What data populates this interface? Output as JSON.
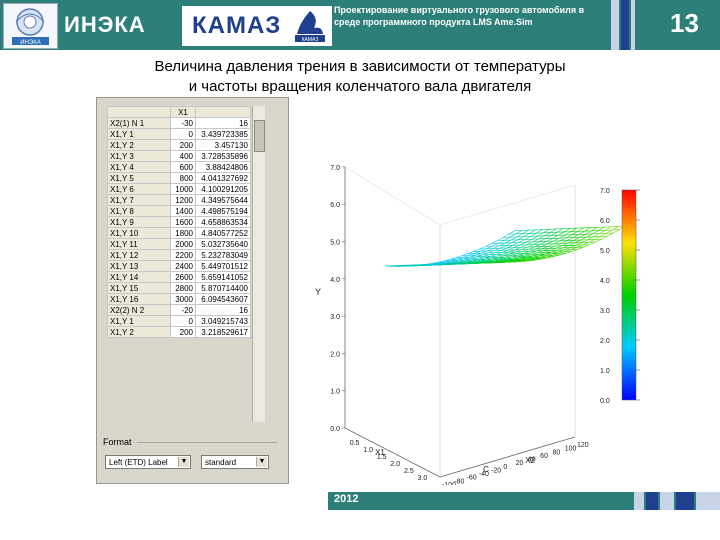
{
  "header": {
    "org_name": "ИНЭКА",
    "brand_name": "КАМАЗ",
    "project_text": "Проектирование виртуального грузового автомобиля в среде программного продукта LMS Ame.Sim",
    "slide_number": "13",
    "logo_left_caption": "ИНЭКА",
    "emblem_caption": "КАМАЗ"
  },
  "slide": {
    "title_line1": "Величина давления трения в зависимости от температуры",
    "title_line2": "и частоты вращения коленчатого вала двигателя",
    "footer_year": "2012"
  },
  "table": {
    "col1_header": "X1",
    "rows": [
      {
        "label": "X2(1) N 1",
        "c1": "-30",
        "c2": "16"
      },
      {
        "label": "X1,Y 1",
        "c1": "0",
        "c2": "3.439723385"
      },
      {
        "label": "X1,Y 2",
        "c1": "200",
        "c2": "3.457130"
      },
      {
        "label": "X1,Y 3",
        "c1": "400",
        "c2": "3.728535896"
      },
      {
        "label": "X1,Y 4",
        "c1": "600",
        "c2": "3.88424806"
      },
      {
        "label": "X1,Y 5",
        "c1": "800",
        "c2": "4.041327692"
      },
      {
        "label": "X1,Y 6",
        "c1": "1000",
        "c2": "4.100291205"
      },
      {
        "label": "X1,Y 7",
        "c1": "1200",
        "c2": "4.349575644"
      },
      {
        "label": "X1,Y 8",
        "c1": "1400",
        "c2": "4.498575194"
      },
      {
        "label": "X1,Y 9",
        "c1": "1600",
        "c2": "4.658863534"
      },
      {
        "label": "X1,Y 10",
        "c1": "1800",
        "c2": "4.840577252"
      },
      {
        "label": "X1,Y 11",
        "c1": "2000",
        "c2": "5.032735640"
      },
      {
        "label": "X1,Y 12",
        "c1": "2200",
        "c2": "5.232783049"
      },
      {
        "label": "X1,Y 13",
        "c1": "2400",
        "c2": "5.449701512"
      },
      {
        "label": "X1,Y 14",
        "c1": "2600",
        "c2": "5.659141052"
      },
      {
        "label": "X1,Y 15",
        "c1": "2800",
        "c2": "5.870714400"
      },
      {
        "label": "X1,Y 16",
        "c1": "3000",
        "c2": "6.094543607"
      },
      {
        "label": "X2(2) N 2",
        "c1": "-20",
        "c2": "16"
      },
      {
        "label": "X1,Y 1",
        "c1": "0",
        "c2": "3.049215743"
      },
      {
        "label": "X1,Y 2",
        "c1": "200",
        "c2": "3.218529617"
      }
    ]
  },
  "format": {
    "label": "Format",
    "select1_value": "Left (ETD) Label",
    "select2_value": "standard"
  },
  "chart": {
    "y_axis_label": "Y",
    "x1_axis_label": "X1",
    "x2_axis_label": "X2",
    "x2_unit_label": "C",
    "y_ticks": [
      "0.0",
      "1.0",
      "2.0",
      "3.0",
      "4.0",
      "5.0",
      "6.0",
      "7.0"
    ],
    "x1_ticks": [
      "0.5",
      "1.0",
      "1.5",
      "2.0",
      "2.5",
      "3.0"
    ],
    "x2_ticks": [
      "-100",
      "-80",
      "-60",
      "-40",
      "-20",
      "0",
      "20",
      "40",
      "60",
      "80",
      "100",
      "120"
    ],
    "colorbar_ticks": [
      "0.0",
      "1.0",
      "2.0",
      "3.0",
      "4.0",
      "5.0",
      "6.0",
      "7.0"
    ]
  },
  "colors": {
    "header_teal": "#2d7f7a",
    "bar_dark": "#1f3f8f",
    "bar_light": "#c7d3e6",
    "accent_blue": "#1f3f8f"
  }
}
